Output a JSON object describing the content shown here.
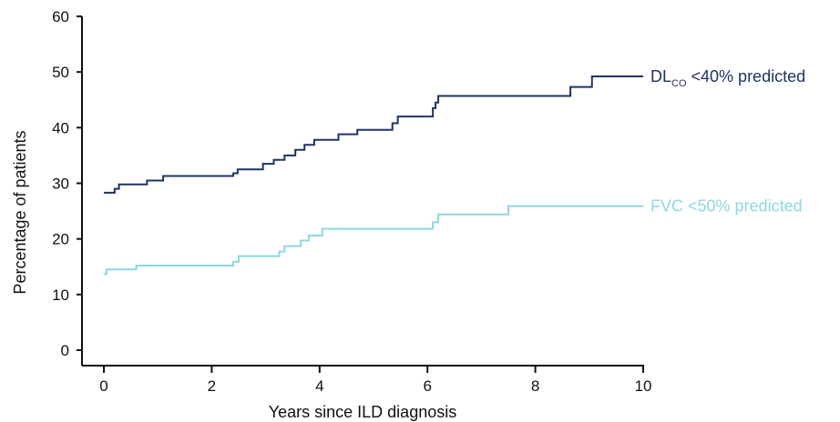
{
  "chart_data": {
    "type": "line",
    "title": "",
    "xlabel": "Years since ILD diagnosis",
    "ylabel": "Percentage of patients",
    "xlim": [
      0,
      10
    ],
    "ylim": [
      0,
      60
    ],
    "x_ticks": [
      0,
      2,
      4,
      6,
      8,
      10
    ],
    "y_ticks": [
      0,
      10,
      20,
      30,
      40,
      50,
      60
    ],
    "grid": false,
    "legend": "none",
    "step": true,
    "series": [
      {
        "label_main": "DL",
        "label_sub": "CO",
        "label_rest": " <40% predicted",
        "color": "#1e3462",
        "x": [
          0,
          0.2,
          0.28,
          0.8,
          1.1,
          2.4,
          2.48,
          2.95,
          3.15,
          3.35,
          3.55,
          3.72,
          3.9,
          4.35,
          4.7,
          5.35,
          5.45,
          6.1,
          6.15,
          6.2,
          8.65,
          9.05,
          10
        ],
        "y": [
          28.3,
          29.0,
          29.8,
          30.5,
          31.3,
          31.8,
          32.5,
          33.5,
          34.2,
          35.0,
          36.0,
          36.9,
          37.8,
          38.8,
          39.6,
          40.8,
          42.0,
          43.5,
          44.5,
          45.7,
          47.3,
          49.2,
          49.2
        ]
      },
      {
        "label_main": "FVC <50% predicted",
        "label_sub": "",
        "label_rest": "",
        "color": "#8fd7df",
        "x": [
          0,
          0.05,
          0.6,
          2.4,
          2.5,
          3.25,
          3.35,
          3.65,
          3.8,
          4.05,
          6.1,
          6.2,
          7.5,
          10
        ],
        "y": [
          13.7,
          14.5,
          15.2,
          15.9,
          16.9,
          17.7,
          18.7,
          19.7,
          20.6,
          21.8,
          23.0,
          24.4,
          25.9,
          25.9
        ]
      }
    ]
  }
}
